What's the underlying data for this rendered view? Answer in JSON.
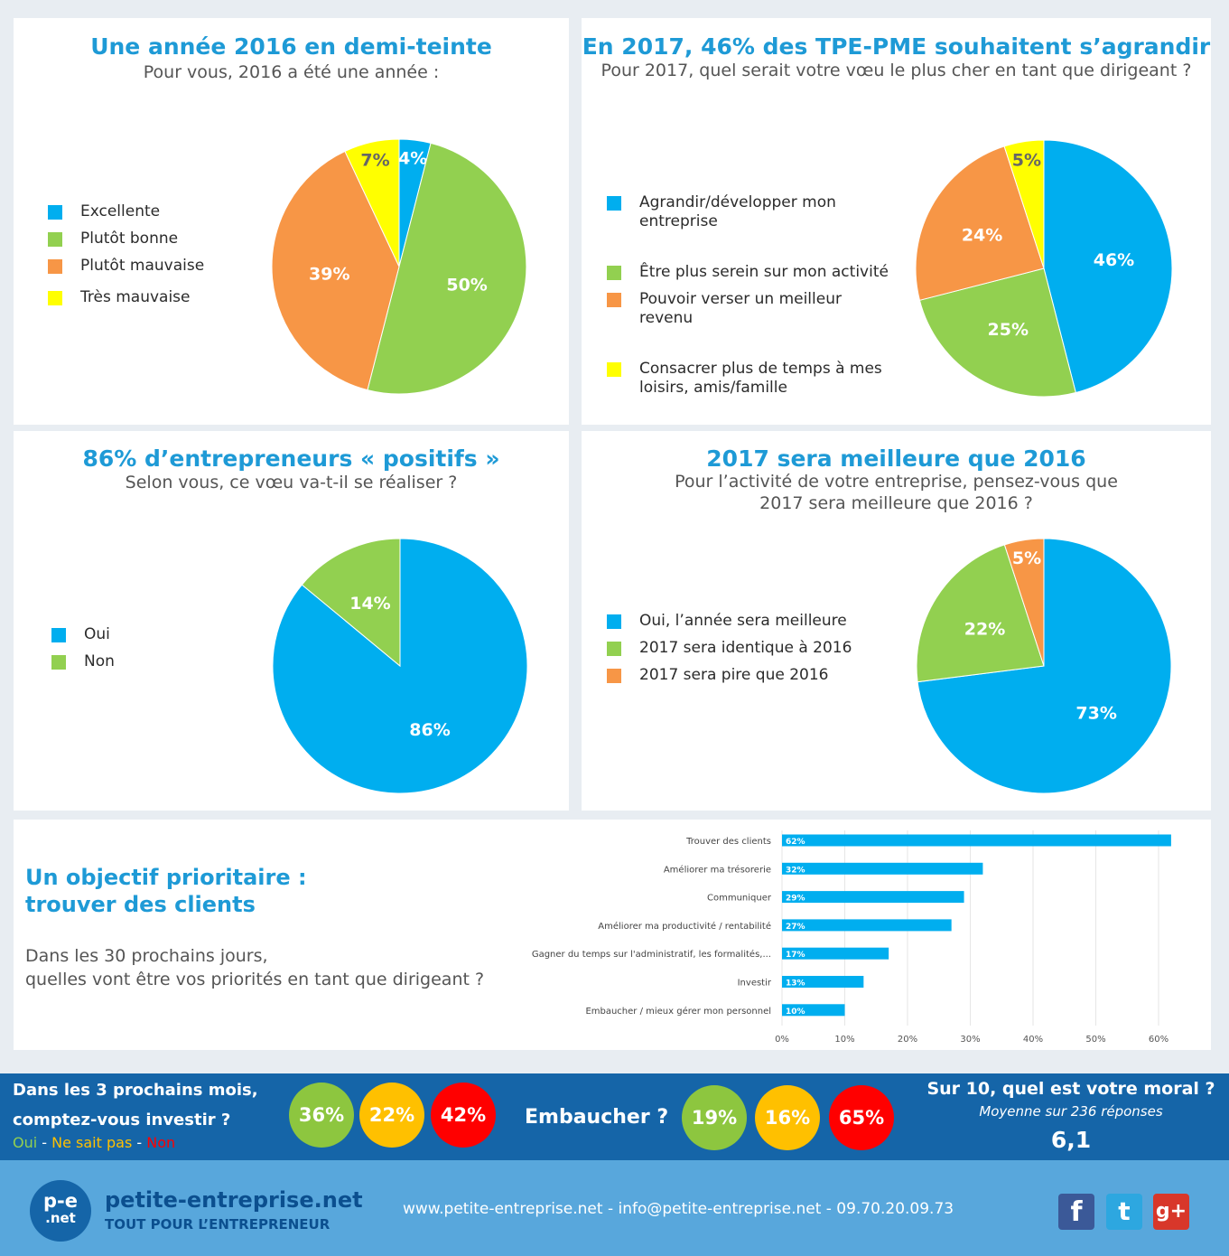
{
  "colors": {
    "blue": "#00aeef",
    "green": "#92d050",
    "orange": "#f79646",
    "yellow": "#ffff00",
    "title": "#1e9ad6",
    "banner": "#1565a8",
    "footer": "#58a7dc",
    "circle_green": "#8dc63f",
    "circle_amber": "#ffc000",
    "circle_red": "#ff0000"
  },
  "panel1": {
    "title": "Une année 2016 en demi-teinte",
    "subtitle": "Pour vous, 2016 a été une année :"
  },
  "panel2": {
    "title": "En 2017, 46% des TPE-PME souhaitent s’agrandir",
    "subtitle": "Pour 2017, quel serait votre vœu le plus cher en tant que dirigeant ?"
  },
  "panel3": {
    "title": "86% d’entrepreneurs « positifs »",
    "subtitle": "Selon vous, ce vœu va-t-il se réaliser ?"
  },
  "panel4": {
    "title": "2017 sera meilleure que 2016",
    "subtitle_line1": "Pour l’activité de votre entreprise, pensez-vous que",
    "subtitle_line2": "2017 sera meilleure que 2016 ?"
  },
  "panel5": {
    "title_line1": "Un objectif prioritaire :",
    "title_line2": "trouver des clients",
    "question_line1": "Dans les 30 prochains jours,",
    "question_line2": "quelles vont être vos priorités en tant que dirigeant ?"
  },
  "chart_data": [
    {
      "type": "pie",
      "categories": [
        "Excellente",
        "Plutôt bonne",
        "Plutôt mauvaise",
        "Très mauvaise"
      ],
      "values": [
        4,
        50,
        39,
        7
      ],
      "labels": [
        "4%",
        "50%",
        "39%",
        "7%"
      ],
      "colors": [
        "#00aeef",
        "#92d050",
        "#f79646",
        "#ffff00"
      ],
      "legend": "left"
    },
    {
      "type": "pie",
      "categories": [
        "Agrandir/développer mon entreprise",
        "Être plus serein sur mon activité",
        "Pouvoir verser un meilleur revenu",
        "Consacrer plus de temps à mes loisirs, amis/famille"
      ],
      "legend_lines": [
        [
          "Agrandir/développer mon",
          "entreprise"
        ],
        [
          "Être plus serein sur mon activité"
        ],
        [
          "Pouvoir verser un meilleur",
          "revenu"
        ],
        [
          "Consacrer plus de temps à mes",
          "loisirs, amis/famille"
        ]
      ],
      "values": [
        46,
        25,
        24,
        5
      ],
      "labels": [
        "46%",
        "25%",
        "24%",
        "5%"
      ],
      "colors": [
        "#00aeef",
        "#92d050",
        "#f79646",
        "#ffff00"
      ],
      "legend": "left"
    },
    {
      "type": "pie",
      "categories": [
        "Oui",
        "Non"
      ],
      "values": [
        86,
        14
      ],
      "labels": [
        "86%",
        "14%"
      ],
      "colors": [
        "#00aeef",
        "#92d050"
      ],
      "legend": "left"
    },
    {
      "type": "pie",
      "categories": [
        "Oui, l’année sera meilleure",
        "2017 sera identique à 2016",
        "2017 sera pire que 2016"
      ],
      "values": [
        73,
        22,
        5
      ],
      "labels": [
        "73%",
        "22%",
        "5%"
      ],
      "colors": [
        "#00aeef",
        "#92d050",
        "#f79646"
      ],
      "legend": "left"
    },
    {
      "type": "bar",
      "orientation": "horizontal",
      "categories": [
        "Trouver des clients",
        "Améliorer ma trésorerie",
        "Communiquer",
        "Améliorer ma productivité / rentabilité",
        "Gagner du temps sur l'administratif, les formalités,...",
        "Investir",
        "Embaucher / mieux gérer mon personnel"
      ],
      "values": [
        62,
        32,
        29,
        27,
        17,
        13,
        10
      ],
      "labels": [
        "62%",
        "32%",
        "29%",
        "27%",
        "17%",
        "13%",
        "10%"
      ],
      "xlim": [
        0,
        60
      ],
      "xticks": [
        "0%",
        "10%",
        "20%",
        "30%",
        "40%",
        "50%",
        "60%"
      ],
      "grid": true,
      "color": "#00aeef"
    }
  ],
  "banner": {
    "invest_line1": "Dans les 3 prochains mois,",
    "invest_line2": "comptez-vous investir ?",
    "legend_oui": "Oui",
    "legend_sep1": " - ",
    "legend_nsp": "Ne sait pas",
    "legend_sep2": " - ",
    "legend_non": "Non",
    "invest_values": [
      "36%",
      "22%",
      "42%"
    ],
    "embaucher_label": "Embaucher ?",
    "embaucher_values": [
      "19%",
      "16%",
      "65%"
    ],
    "moral_title": "Sur 10, quel est votre moral ?",
    "moral_sub": "Moyenne sur 236 réponses",
    "moral_value": "6,1"
  },
  "footer": {
    "logo_top": "p-e",
    "logo_bottom": ".net",
    "brand": "petite-entreprise.net",
    "tagline": "TOUT POUR L’ENTREPRENEUR",
    "contact": "www.petite-entreprise.net - info@petite-entreprise.net - 09.70.20.09.73",
    "social": [
      {
        "icon": "facebook-icon",
        "glyph": "f"
      },
      {
        "icon": "twitter-icon",
        "glyph": "t"
      },
      {
        "icon": "google-plus-icon",
        "glyph": "g+"
      }
    ]
  }
}
